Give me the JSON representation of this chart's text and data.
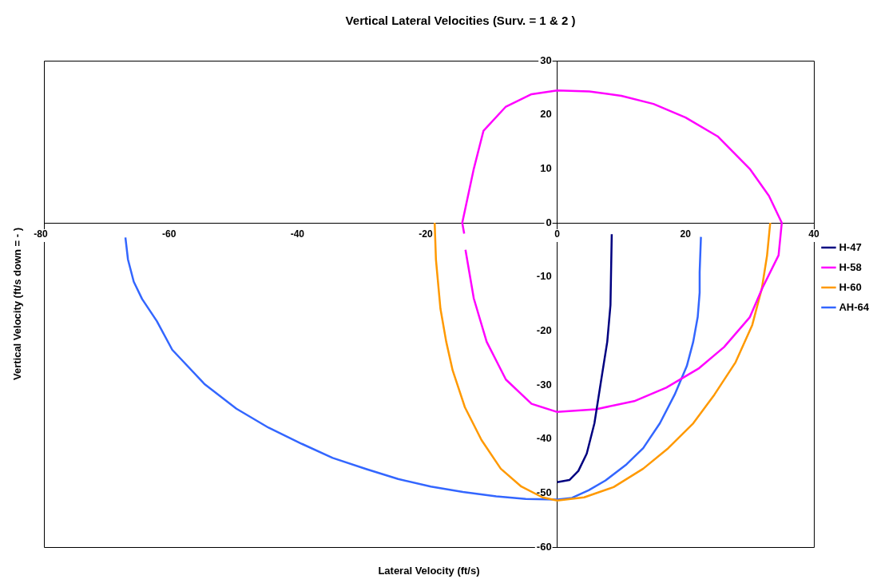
{
  "chart_data": {
    "type": "line",
    "title": "Vertical Lateral Velocities (Surv. = 1 & 2 )",
    "xlabel": "Lateral Velocity (ft/s)",
    "ylabel": "Vertical Velocity (ft/s down = - )",
    "xlim": [
      -80,
      40
    ],
    "xticks": [
      -80,
      -60,
      -40,
      -20,
      0,
      20,
      40
    ],
    "ylim": [
      -60,
      30
    ],
    "yticks": [
      -60,
      -50,
      -40,
      -30,
      -20,
      -10,
      0,
      10,
      20,
      30
    ],
    "grid": false,
    "legend": "right",
    "marker": "none",
    "line_style": "solid",
    "series": [
      {
        "name": "H-47",
        "color": "#000080",
        "x": [
          8.5,
          8.3,
          7.8,
          6.8,
          5.8,
          4.6,
          3.3,
          1.9,
          0
        ],
        "values": [
          -2.1,
          -15.2,
          -22,
          -29.5,
          -37.1,
          -42.7,
          -45.9,
          -47.6,
          -48
        ]
      },
      {
        "name": "H-58",
        "color": "#ff00ff",
        "x": [
          -14.5,
          -14.8,
          -13,
          -11.5,
          -8,
          -4,
          0,
          5,
          10,
          15,
          20,
          25,
          30,
          33,
          35,
          34.5,
          32,
          30,
          26,
          22,
          17,
          12,
          6,
          0,
          -4,
          -8,
          -11,
          -13,
          -14.3
        ],
        "values": [
          -2,
          0,
          10,
          17,
          21.5,
          23.8,
          24.5,
          24.3,
          23.5,
          22,
          19.5,
          16,
          10,
          5,
          0,
          -6,
          -12,
          -17.5,
          -23,
          -27,
          -30.5,
          -33,
          -34.5,
          -35,
          -33.5,
          -29,
          -22,
          -14,
          -5
        ]
      },
      {
        "name": "H-60",
        "color": "#ff9900",
        "x": [
          -19.1,
          -18.9,
          -18.2,
          -17.3,
          -16.3,
          -14.4,
          -11.8,
          -8.8,
          -5.6,
          -2.3,
          0,
          4.2,
          8.8,
          13.4,
          17.3,
          21.2,
          24.5,
          27.8,
          30.4,
          31.9,
          32.7,
          33.2
        ],
        "values": [
          0,
          -6.8,
          -15.9,
          -22,
          -27.3,
          -34.1,
          -40.2,
          -45.5,
          -48.8,
          -50.8,
          -51.4,
          -50.8,
          -48.9,
          -45.5,
          -41.7,
          -37.1,
          -31.8,
          -25.8,
          -18.9,
          -12.1,
          -6.1,
          0
        ]
      },
      {
        "name": "AH-64",
        "color": "#3366ff",
        "x": [
          -67.3,
          -66.9,
          -66,
          -64.7,
          -62.4,
          -60,
          -55,
          -50,
          -45,
          -39.8,
          -35,
          -29.7,
          -24.8,
          -19.7,
          -14.7,
          -9.5,
          -4.9,
          0,
          2.3,
          4.9,
          7.5,
          10.8,
          13.4,
          16,
          18.3,
          20.2,
          21.2,
          21.9,
          22.2,
          22.2,
          22.4
        ],
        "values": [
          -2.7,
          -6.8,
          -10.9,
          -14.1,
          -18.2,
          -23.5,
          -29.8,
          -34.4,
          -37.9,
          -40.9,
          -43.5,
          -45.6,
          -47.4,
          -48.8,
          -49.8,
          -50.6,
          -51.1,
          -51.2,
          -50.9,
          -49.5,
          -47.7,
          -44.7,
          -41.7,
          -37.1,
          -31.8,
          -26.5,
          -22,
          -17.4,
          -12.9,
          -9.1,
          -2.6
        ]
      }
    ]
  }
}
